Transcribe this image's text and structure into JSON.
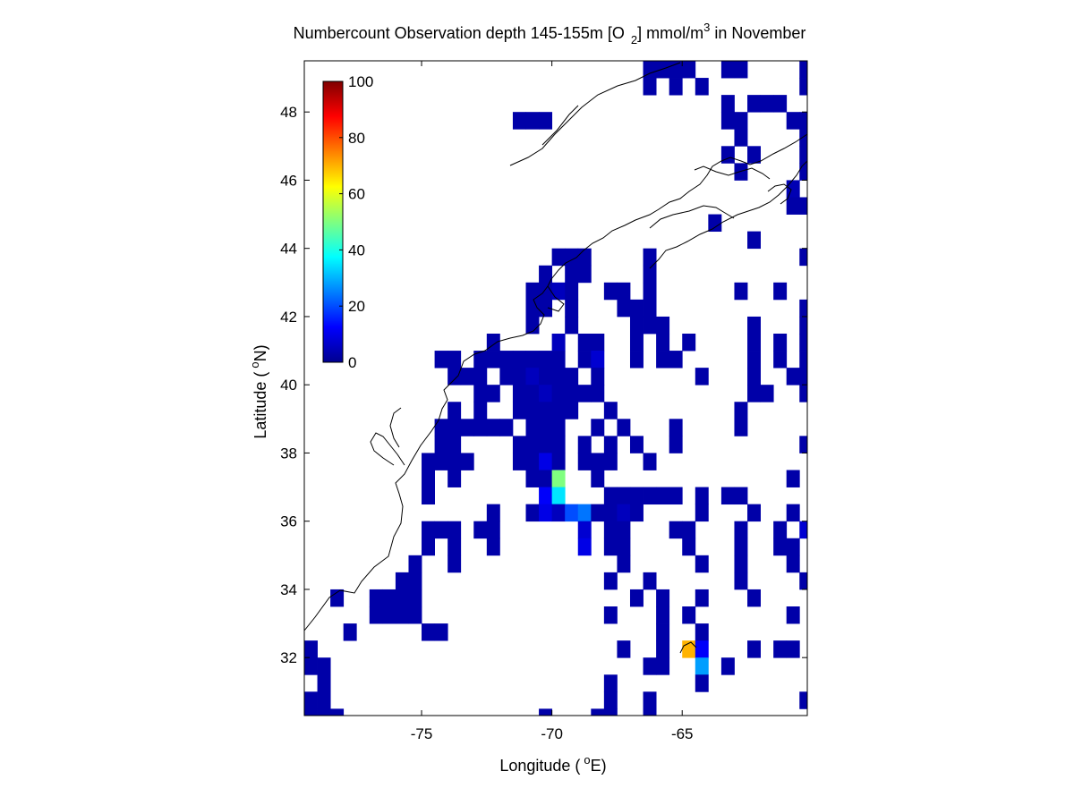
{
  "chart_data": {
    "type": "heatmap",
    "title": {
      "part1": "Numbercount Observation depth 145-155m [O",
      "subscript": "2",
      "part2": "] mmol/m",
      "superscript": "3",
      "part3": " in November"
    },
    "xlabel": {
      "prefix": "Longitude (",
      "degree": "o",
      "suffix": "E)"
    },
    "ylabel": {
      "prefix": "Latitude (",
      "degree": "o",
      "suffix": "N)"
    },
    "xlim": [
      -79.5,
      -60.2
    ],
    "ylim": [
      30.3,
      49.5
    ],
    "x_ticks": [
      -75,
      -70,
      -65
    ],
    "y_ticks": [
      32,
      34,
      36,
      38,
      40,
      42,
      44,
      46,
      48
    ],
    "colorbar": {
      "range": [
        0,
        100
      ],
      "ticks": [
        0,
        20,
        40,
        60,
        80,
        100
      ],
      "colormap": "jet",
      "placement": "upper-left inside"
    },
    "cell_size_deg": 0.5,
    "background_color": "#ffffff",
    "cells": [
      [
        -66.25,
        49.25,
        4
      ],
      [
        -65.75,
        49.25,
        4
      ],
      [
        -65.25,
        49.25,
        4
      ],
      [
        -64.75,
        49.25,
        4
      ],
      [
        -63.25,
        49.25,
        4
      ],
      [
        -62.75,
        49.25,
        4
      ],
      [
        -60.25,
        49.25,
        4
      ],
      [
        -66.25,
        48.75,
        4
      ],
      [
        -65.25,
        48.75,
        4
      ],
      [
        -64.25,
        48.75,
        4
      ],
      [
        -60.25,
        48.75,
        4
      ],
      [
        -63.25,
        48.25,
        4
      ],
      [
        -62.25,
        48.25,
        4
      ],
      [
        -61.75,
        48.25,
        4
      ],
      [
        -61.25,
        48.25,
        4
      ],
      [
        -71.25,
        47.75,
        4
      ],
      [
        -70.75,
        47.75,
        4
      ],
      [
        -70.25,
        47.75,
        4
      ],
      [
        -63.25,
        47.75,
        4
      ],
      [
        -62.75,
        47.75,
        4
      ],
      [
        -60.75,
        47.75,
        4
      ],
      [
        -60.25,
        47.75,
        4
      ],
      [
        -62.75,
        47.25,
        4
      ],
      [
        -60.25,
        47.25,
        4
      ],
      [
        -63.25,
        46.75,
        4
      ],
      [
        -62.25,
        46.75,
        4
      ],
      [
        -60.25,
        46.75,
        4
      ],
      [
        -62.75,
        46.25,
        4
      ],
      [
        -60.25,
        46.25,
        4
      ],
      [
        -60.75,
        45.75,
        5
      ],
      [
        -60.75,
        45.25,
        4
      ],
      [
        -60.25,
        45.25,
        4
      ],
      [
        -63.75,
        44.75,
        4
      ],
      [
        -62.25,
        44.25,
        4
      ],
      [
        -69.75,
        43.75,
        4
      ],
      [
        -69.25,
        43.75,
        4
      ],
      [
        -68.75,
        43.75,
        4
      ],
      [
        -66.25,
        43.75,
        4
      ],
      [
        -60.25,
        43.75,
        4
      ],
      [
        -70.25,
        43.25,
        4
      ],
      [
        -69.25,
        43.25,
        4
      ],
      [
        -68.75,
        43.25,
        4
      ],
      [
        -66.25,
        43.25,
        4
      ],
      [
        -70.75,
        42.75,
        4
      ],
      [
        -70.25,
        42.75,
        4
      ],
      [
        -69.75,
        42.75,
        6
      ],
      [
        -69.25,
        42.75,
        4
      ],
      [
        -67.75,
        42.75,
        4
      ],
      [
        -67.25,
        42.75,
        4
      ],
      [
        -66.25,
        42.75,
        4
      ],
      [
        -62.75,
        42.75,
        4
      ],
      [
        -61.25,
        42.75,
        4
      ],
      [
        -70.75,
        42.25,
        4
      ],
      [
        -70.25,
        42.25,
        4
      ],
      [
        -69.25,
        42.25,
        4
      ],
      [
        -67.25,
        42.25,
        4
      ],
      [
        -66.75,
        42.25,
        4
      ],
      [
        -66.25,
        42.25,
        4
      ],
      [
        -60.25,
        42.25,
        4
      ],
      [
        -70.75,
        41.75,
        4
      ],
      [
        -69.25,
        41.75,
        4
      ],
      [
        -66.75,
        41.75,
        4
      ],
      [
        -66.25,
        41.75,
        4
      ],
      [
        -65.75,
        41.75,
        4
      ],
      [
        -62.25,
        41.75,
        4
      ],
      [
        -60.25,
        41.75,
        4
      ],
      [
        -72.25,
        41.25,
        4
      ],
      [
        -69.75,
        41.25,
        6
      ],
      [
        -68.75,
        41.25,
        4
      ],
      [
        -68.25,
        41.25,
        4
      ],
      [
        -66.75,
        41.25,
        4
      ],
      [
        -65.75,
        41.25,
        4
      ],
      [
        -64.75,
        41.25,
        4
      ],
      [
        -62.25,
        41.25,
        4
      ],
      [
        -61.25,
        41.25,
        4
      ],
      [
        -60.25,
        41.25,
        4
      ],
      [
        -74.25,
        40.75,
        4
      ],
      [
        -73.75,
        40.75,
        4
      ],
      [
        -72.75,
        40.75,
        4
      ],
      [
        -72.25,
        40.75,
        4
      ],
      [
        -71.75,
        40.75,
        4
      ],
      [
        -71.25,
        40.75,
        4
      ],
      [
        -70.75,
        40.75,
        4
      ],
      [
        -70.25,
        40.75,
        4
      ],
      [
        -69.75,
        40.75,
        4
      ],
      [
        -68.75,
        40.75,
        4
      ],
      [
        -68.25,
        40.75,
        8
      ],
      [
        -66.75,
        40.75,
        4
      ],
      [
        -65.75,
        40.75,
        4
      ],
      [
        -65.25,
        40.75,
        4
      ],
      [
        -62.25,
        40.75,
        4
      ],
      [
        -61.25,
        40.75,
        4
      ],
      [
        -60.25,
        40.75,
        4
      ],
      [
        -73.75,
        40.25,
        4
      ],
      [
        -73.25,
        40.25,
        4
      ],
      [
        -72.75,
        40.25,
        4
      ],
      [
        -71.75,
        40.25,
        4
      ],
      [
        -71.25,
        40.25,
        4
      ],
      [
        -70.75,
        40.25,
        6
      ],
      [
        -70.25,
        40.25,
        4
      ],
      [
        -69.75,
        40.25,
        4
      ],
      [
        -69.25,
        40.25,
        4
      ],
      [
        -68.25,
        40.25,
        4
      ],
      [
        -64.25,
        40.25,
        4
      ],
      [
        -62.25,
        40.25,
        4
      ],
      [
        -60.75,
        40.25,
        4
      ],
      [
        -60.25,
        40.25,
        4
      ],
      [
        -72.75,
        39.75,
        4
      ],
      [
        -72.25,
        39.75,
        4
      ],
      [
        -71.25,
        39.75,
        4
      ],
      [
        -70.75,
        39.75,
        4
      ],
      [
        -70.25,
        39.75,
        6
      ],
      [
        -69.75,
        39.75,
        4
      ],
      [
        -69.25,
        39.75,
        4
      ],
      [
        -68.75,
        39.75,
        4
      ],
      [
        -68.25,
        39.75,
        4
      ],
      [
        -62.25,
        39.75,
        4
      ],
      [
        -61.75,
        39.75,
        4
      ],
      [
        -60.25,
        39.75,
        4
      ],
      [
        -73.75,
        39.25,
        4
      ],
      [
        -72.75,
        39.25,
        4
      ],
      [
        -71.25,
        39.25,
        4
      ],
      [
        -70.75,
        39.25,
        4
      ],
      [
        -70.25,
        39.25,
        4
      ],
      [
        -69.75,
        39.25,
        4
      ],
      [
        -69.25,
        39.25,
        4
      ],
      [
        -67.75,
        39.25,
        4
      ],
      [
        -62.75,
        39.25,
        4
      ],
      [
        -74.25,
        38.75,
        4
      ],
      [
        -73.75,
        38.75,
        4
      ],
      [
        -73.25,
        38.75,
        4
      ],
      [
        -72.75,
        38.75,
        4
      ],
      [
        -72.25,
        38.75,
        4
      ],
      [
        -71.75,
        38.75,
        4
      ],
      [
        -70.75,
        38.75,
        4
      ],
      [
        -70.25,
        38.75,
        4
      ],
      [
        -69.75,
        38.75,
        4
      ],
      [
        -68.25,
        38.75,
        4
      ],
      [
        -67.25,
        38.75,
        4
      ],
      [
        -65.25,
        38.75,
        4
      ],
      [
        -62.75,
        38.75,
        4
      ],
      [
        -74.25,
        38.25,
        4
      ],
      [
        -73.75,
        38.25,
        4
      ],
      [
        -71.25,
        38.25,
        4
      ],
      [
        -70.75,
        38.25,
        4
      ],
      [
        -70.25,
        38.25,
        4
      ],
      [
        -69.75,
        38.25,
        4
      ],
      [
        -68.75,
        38.25,
        4
      ],
      [
        -67.75,
        38.25,
        4
      ],
      [
        -66.75,
        38.25,
        4
      ],
      [
        -65.25,
        38.25,
        4
      ],
      [
        -60.25,
        38.25,
        4
      ],
      [
        -74.75,
        37.75,
        4
      ],
      [
        -74.25,
        37.75,
        4
      ],
      [
        -73.75,
        37.75,
        4
      ],
      [
        -73.25,
        37.75,
        4
      ],
      [
        -71.25,
        37.75,
        4
      ],
      [
        -70.75,
        37.75,
        4
      ],
      [
        -70.25,
        37.75,
        10
      ],
      [
        -69.75,
        37.75,
        4
      ],
      [
        -68.75,
        37.75,
        4
      ],
      [
        -68.25,
        37.75,
        4
      ],
      [
        -67.75,
        37.75,
        4
      ],
      [
        -66.25,
        37.75,
        4
      ],
      [
        -74.75,
        37.25,
        4
      ],
      [
        -73.75,
        37.25,
        4
      ],
      [
        -70.75,
        37.25,
        4
      ],
      [
        -70.25,
        37.25,
        4
      ],
      [
        -69.75,
        37.25,
        50
      ],
      [
        -68.25,
        37.25,
        4
      ],
      [
        -60.75,
        37.25,
        4
      ],
      [
        -74.75,
        36.75,
        4
      ],
      [
        -70.25,
        36.75,
        12
      ],
      [
        -69.75,
        36.75,
        35
      ],
      [
        -67.75,
        36.75,
        4
      ],
      [
        -67.25,
        36.75,
        4
      ],
      [
        -66.75,
        36.75,
        4
      ],
      [
        -66.25,
        36.75,
        4
      ],
      [
        -65.75,
        36.75,
        4
      ],
      [
        -65.25,
        36.75,
        4
      ],
      [
        -64.25,
        36.75,
        4
      ],
      [
        -63.25,
        36.75,
        4
      ],
      [
        -62.75,
        36.75,
        4
      ],
      [
        -72.25,
        36.25,
        4
      ],
      [
        -70.75,
        36.25,
        4
      ],
      [
        -70.25,
        36.25,
        10
      ],
      [
        -69.75,
        36.25,
        6
      ],
      [
        -69.25,
        36.25,
        20
      ],
      [
        -68.75,
        36.25,
        24
      ],
      [
        -68.25,
        36.25,
        4
      ],
      [
        -67.75,
        36.25,
        4
      ],
      [
        -67.25,
        36.25,
        6
      ],
      [
        -66.75,
        36.25,
        4
      ],
      [
        -64.25,
        36.25,
        4
      ],
      [
        -62.25,
        36.25,
        4
      ],
      [
        -60.75,
        36.25,
        4
      ],
      [
        -74.75,
        35.75,
        4
      ],
      [
        -74.25,
        35.75,
        4
      ],
      [
        -73.75,
        35.75,
        4
      ],
      [
        -72.75,
        35.75,
        4
      ],
      [
        -72.25,
        35.75,
        4
      ],
      [
        -68.75,
        35.75,
        8
      ],
      [
        -67.75,
        35.75,
        4
      ],
      [
        -67.25,
        35.75,
        4
      ],
      [
        -65.25,
        35.75,
        4
      ],
      [
        -64.75,
        35.75,
        4
      ],
      [
        -62.75,
        35.75,
        4
      ],
      [
        -61.25,
        35.75,
        4
      ],
      [
        -60.25,
        35.75,
        8
      ],
      [
        -74.75,
        35.25,
        4
      ],
      [
        -73.75,
        35.25,
        4
      ],
      [
        -72.25,
        35.25,
        4
      ],
      [
        -68.75,
        35.25,
        10
      ],
      [
        -67.75,
        35.25,
        4
      ],
      [
        -67.25,
        35.25,
        4
      ],
      [
        -64.75,
        35.25,
        4
      ],
      [
        -62.75,
        35.25,
        4
      ],
      [
        -61.25,
        35.25,
        4
      ],
      [
        -60.75,
        35.25,
        4
      ],
      [
        -75.25,
        34.75,
        4
      ],
      [
        -73.75,
        34.75,
        4
      ],
      [
        -67.25,
        34.75,
        4
      ],
      [
        -64.25,
        34.75,
        4
      ],
      [
        -62.75,
        34.75,
        4
      ],
      [
        -60.75,
        34.75,
        4
      ],
      [
        -75.75,
        34.25,
        4
      ],
      [
        -75.25,
        34.25,
        4
      ],
      [
        -67.75,
        34.25,
        4
      ],
      [
        -66.25,
        34.25,
        4
      ],
      [
        -62.75,
        34.25,
        4
      ],
      [
        -60.25,
        34.25,
        4
      ],
      [
        -78.25,
        33.75,
        4
      ],
      [
        -76.75,
        33.75,
        4
      ],
      [
        -76.25,
        33.75,
        4
      ],
      [
        -75.75,
        33.75,
        4
      ],
      [
        -75.25,
        33.75,
        4
      ],
      [
        -66.75,
        33.75,
        4
      ],
      [
        -65.75,
        33.75,
        4
      ],
      [
        -64.25,
        33.75,
        4
      ],
      [
        -62.25,
        33.75,
        4
      ],
      [
        -76.75,
        33.25,
        4
      ],
      [
        -76.25,
        33.25,
        4
      ],
      [
        -75.75,
        33.25,
        4
      ],
      [
        -75.25,
        33.25,
        4
      ],
      [
        -67.75,
        33.25,
        4
      ],
      [
        -65.75,
        33.25,
        4
      ],
      [
        -64.75,
        33.25,
        4
      ],
      [
        -60.75,
        33.25,
        4
      ],
      [
        -77.75,
        32.75,
        4
      ],
      [
        -74.75,
        32.75,
        4
      ],
      [
        -74.25,
        32.75,
        4
      ],
      [
        -65.75,
        32.75,
        4
      ],
      [
        -64.25,
        32.75,
        4
      ],
      [
        -79.25,
        32.25,
        4
      ],
      [
        -67.25,
        32.25,
        4
      ],
      [
        -65.75,
        32.25,
        4
      ],
      [
        -64.75,
        32.25,
        70
      ],
      [
        -64.25,
        32.25,
        12
      ],
      [
        -62.25,
        32.25,
        4
      ],
      [
        -61.25,
        32.25,
        4
      ],
      [
        -60.75,
        32.25,
        4
      ],
      [
        -79.25,
        31.75,
        4
      ],
      [
        -78.75,
        31.75,
        4
      ],
      [
        -66.25,
        31.75,
        4
      ],
      [
        -65.75,
        31.75,
        4
      ],
      [
        -64.25,
        31.75,
        28
      ],
      [
        -63.25,
        31.75,
        4
      ],
      [
        -78.75,
        31.25,
        4
      ],
      [
        -67.75,
        31.25,
        4
      ],
      [
        -64.25,
        31.25,
        4
      ],
      [
        -79.25,
        30.75,
        4
      ],
      [
        -78.75,
        30.75,
        4
      ],
      [
        -67.75,
        30.75,
        4
      ],
      [
        -66.25,
        30.75,
        4
      ],
      [
        -60.25,
        30.75,
        4
      ],
      [
        -79.25,
        30.25,
        4
      ],
      [
        -78.75,
        30.25,
        4
      ],
      [
        -78.25,
        30.25,
        4
      ],
      [
        -70.25,
        30.25,
        4
      ],
      [
        -68.25,
        30.25,
        4
      ],
      [
        -67.75,
        30.25,
        4
      ],
      [
        -66.25,
        30.25,
        4
      ]
    ]
  }
}
